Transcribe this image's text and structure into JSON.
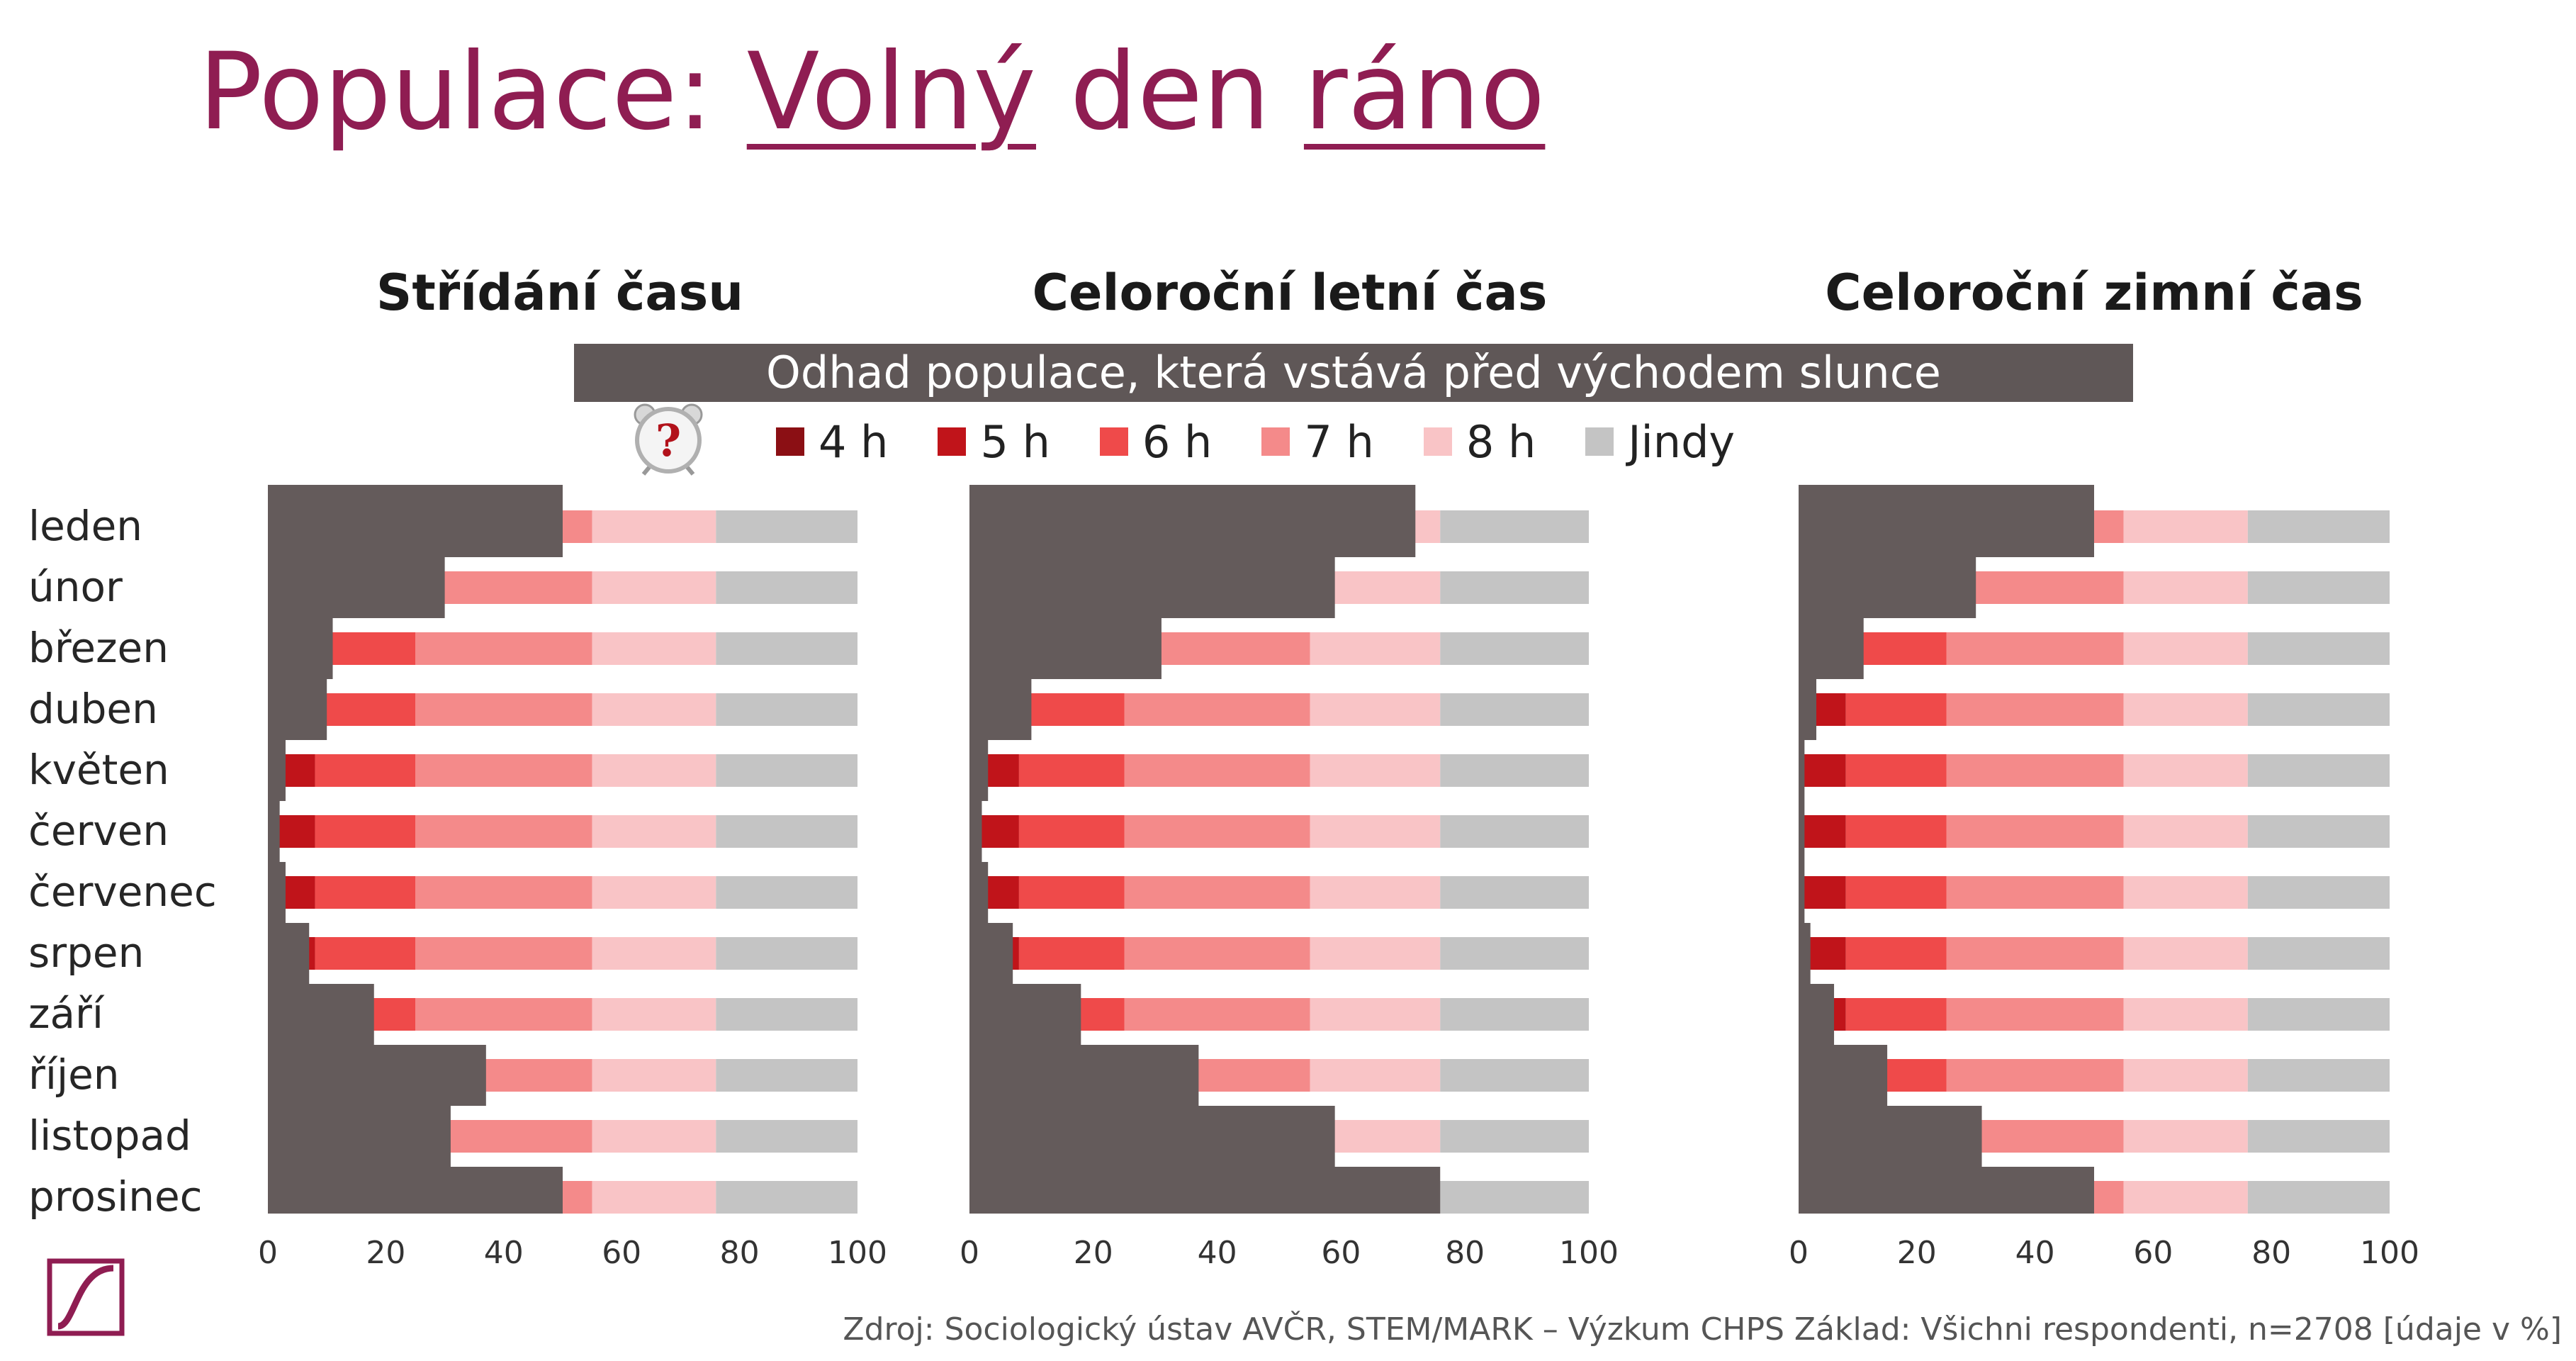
{
  "title": {
    "prefix": "Populace: ",
    "part1": "Volný",
    "mid": " den ",
    "part2": "ráno"
  },
  "banner": "Odhad populace, která vstává před východem slunce",
  "source": "Zdroj: Sociologický ústav AVČR, STEM/MARK – Výzkum CHPS     Základ: Všichni respondenti, n=2708 [údaje v %]",
  "legend": [
    {
      "label": "4 h",
      "color": "#8b0f14"
    },
    {
      "label": "5 h",
      "color": "#c0141a"
    },
    {
      "label": "6 h",
      "color": "#ef4a4a"
    },
    {
      "label": "7 h",
      "color": "#f48a8a"
    },
    {
      "label": "8 h",
      "color": "#f9c4c6"
    },
    {
      "label": "Jindy",
      "color": "#c4c4c4"
    }
  ],
  "chart_data": {
    "type": "bar",
    "orientation": "horizontal",
    "stacked": true,
    "xlim": [
      0,
      100
    ],
    "ticks": [
      "0",
      "20",
      "40",
      "60",
      "80",
      "100"
    ],
    "categories": [
      "leden",
      "únor",
      "březen",
      "duben",
      "květen",
      "červen",
      "červenec",
      "srpen",
      "září",
      "říjen",
      "listopad",
      "prosinec"
    ],
    "series_names": [
      "4 h",
      "5 h",
      "6 h",
      "7 h",
      "8 h",
      "Jindy"
    ],
    "overlay_color": "#645b5b",
    "panels": [
      {
        "title": "Střídání času",
        "shaded_until": [
          50,
          30,
          11,
          10,
          3,
          2,
          3,
          7,
          18,
          37,
          31,
          50
        ],
        "series": [
          {
            "name": "4 h",
            "values": [
              0,
              0,
              0,
              0,
              0,
              0,
              0,
              0,
              0,
              0,
              0,
              0
            ]
          },
          {
            "name": "5 h",
            "values": [
              0,
              0,
              0,
              0,
              8,
              8,
              8,
              8,
              0,
              0,
              0,
              0
            ]
          },
          {
            "name": "6 h",
            "values": [
              0,
              0,
              25,
              25,
              17,
              17,
              17,
              17,
              25,
              0,
              0,
              0
            ]
          },
          {
            "name": "7 h",
            "values": [
              55,
              55,
              30,
              30,
              30,
              30,
              30,
              30,
              30,
              55,
              55,
              55
            ]
          },
          {
            "name": "8 h",
            "values": [
              21,
              21,
              21,
              21,
              21,
              21,
              21,
              21,
              21,
              21,
              21,
              21
            ]
          },
          {
            "name": "Jindy",
            "values": [
              24,
              24,
              24,
              24,
              24,
              24,
              24,
              24,
              24,
              24,
              24,
              24
            ]
          }
        ]
      },
      {
        "title": "Celoroční letní čas",
        "shaded_until": [
          72,
          59,
          31,
          10,
          3,
          2,
          3,
          7,
          18,
          37,
          59,
          76
        ],
        "series": [
          {
            "name": "4 h",
            "values": [
              0,
              0,
              0,
              0,
              0,
              0,
              0,
              0,
              0,
              0,
              0,
              0
            ]
          },
          {
            "name": "5 h",
            "values": [
              0,
              0,
              0,
              0,
              8,
              8,
              8,
              8,
              0,
              0,
              0,
              0
            ]
          },
          {
            "name": "6 h",
            "values": [
              0,
              0,
              0,
              25,
              17,
              17,
              17,
              17,
              25,
              0,
              0,
              0
            ]
          },
          {
            "name": "7 h",
            "values": [
              0,
              0,
              55,
              30,
              30,
              30,
              30,
              30,
              30,
              55,
              0,
              0
            ]
          },
          {
            "name": "8 h",
            "values": [
              76,
              76,
              21,
              21,
              21,
              21,
              21,
              21,
              21,
              21,
              76,
              0
            ]
          },
          {
            "name": "Jindy",
            "values": [
              24,
              24,
              24,
              24,
              24,
              24,
              24,
              24,
              24,
              24,
              24,
              100
            ]
          }
        ]
      },
      {
        "title": "Celoroční zimní čas",
        "shaded_until": [
          50,
          30,
          11,
          3,
          1,
          1,
          1,
          2,
          6,
          15,
          31,
          50
        ],
        "series": [
          {
            "name": "4 h",
            "values": [
              0,
              0,
              0,
              0,
              0,
              0,
              0,
              0,
              0,
              0,
              0,
              0
            ]
          },
          {
            "name": "5 h",
            "values": [
              0,
              0,
              0,
              8,
              8,
              8,
              8,
              8,
              8,
              0,
              0,
              0
            ]
          },
          {
            "name": "6 h",
            "values": [
              0,
              0,
              25,
              17,
              17,
              17,
              17,
              17,
              17,
              25,
              0,
              0
            ]
          },
          {
            "name": "7 h",
            "values": [
              55,
              55,
              30,
              30,
              30,
              30,
              30,
              30,
              30,
              30,
              55,
              55
            ]
          },
          {
            "name": "8 h",
            "values": [
              21,
              21,
              21,
              21,
              21,
              21,
              21,
              21,
              21,
              21,
              21,
              21
            ]
          },
          {
            "name": "Jindy",
            "values": [
              24,
              24,
              24,
              24,
              24,
              24,
              24,
              24,
              24,
              24,
              24,
              24
            ]
          }
        ]
      }
    ]
  }
}
